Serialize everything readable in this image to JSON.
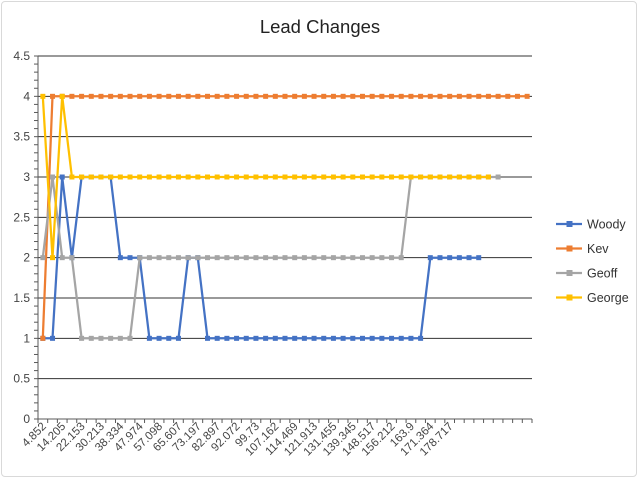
{
  "chart_data": {
    "type": "line",
    "title": "Lead Changes",
    "xlabel": "",
    "ylabel": "",
    "ylim": [
      0,
      4.5
    ],
    "yticks": [
      "0",
      "0.5",
      "1",
      "1.5",
      "2",
      "2.5",
      "3",
      "3.5",
      "4",
      "4.5"
    ],
    "x_tick_labels": [
      "4.852",
      "14.205",
      "22.153",
      "30.213",
      "38.334",
      "47.974",
      "57.098",
      "65.607",
      "73.197",
      "82.897",
      "92.072",
      "99.73",
      "107.162",
      "114.469",
      "121.913",
      "131.455",
      "139.345",
      "148.517",
      "156.212",
      "163.9",
      "171.364",
      "178.717"
    ],
    "grid": true,
    "legend_position": "right",
    "series": [
      {
        "name": "Woody",
        "color": "#4472C4",
        "values": [
          1,
          1,
          3,
          2,
          3,
          3,
          3,
          3,
          2,
          2,
          2,
          1,
          1,
          1,
          1,
          2,
          2,
          1,
          1,
          1,
          1,
          1,
          1,
          1,
          1,
          1,
          1,
          1,
          1,
          1,
          1,
          1,
          1,
          1,
          1,
          1,
          1,
          1,
          1,
          1,
          2,
          2,
          2,
          2,
          2,
          2
        ]
      },
      {
        "name": "Kev",
        "color": "#ED7D31",
        "values": [
          1,
          4,
          4,
          4,
          4,
          4,
          4,
          4,
          4,
          4,
          4,
          4,
          4,
          4,
          4,
          4,
          4,
          4,
          4,
          4,
          4,
          4,
          4,
          4,
          4,
          4,
          4,
          4,
          4,
          4,
          4,
          4,
          4,
          4,
          4,
          4,
          4,
          4,
          4,
          4,
          4,
          4,
          4,
          4,
          4,
          4,
          4,
          4,
          4,
          4,
          4
        ]
      },
      {
        "name": "Geoff",
        "color": "#A5A5A5",
        "values": [
          2,
          3,
          2,
          2,
          1,
          1,
          1,
          1,
          1,
          1,
          2,
          2,
          2,
          2,
          2,
          2,
          2,
          2,
          2,
          2,
          2,
          2,
          2,
          2,
          2,
          2,
          2,
          2,
          2,
          2,
          2,
          2,
          2,
          2,
          2,
          2,
          2,
          2,
          3,
          3,
          3,
          3,
          3,
          3,
          3,
          3,
          3,
          3
        ]
      },
      {
        "name": "George",
        "color": "#FFC000",
        "values": [
          4,
          2,
          4,
          3,
          3,
          3,
          3,
          3,
          3,
          3,
          3,
          3,
          3,
          3,
          3,
          3,
          3,
          3,
          3,
          3,
          3,
          3,
          3,
          3,
          3,
          3,
          3,
          3,
          3,
          3,
          3,
          3,
          3,
          3,
          3,
          3,
          3,
          3,
          3,
          3,
          3,
          3,
          3,
          3,
          3,
          3,
          3
        ]
      }
    ]
  }
}
